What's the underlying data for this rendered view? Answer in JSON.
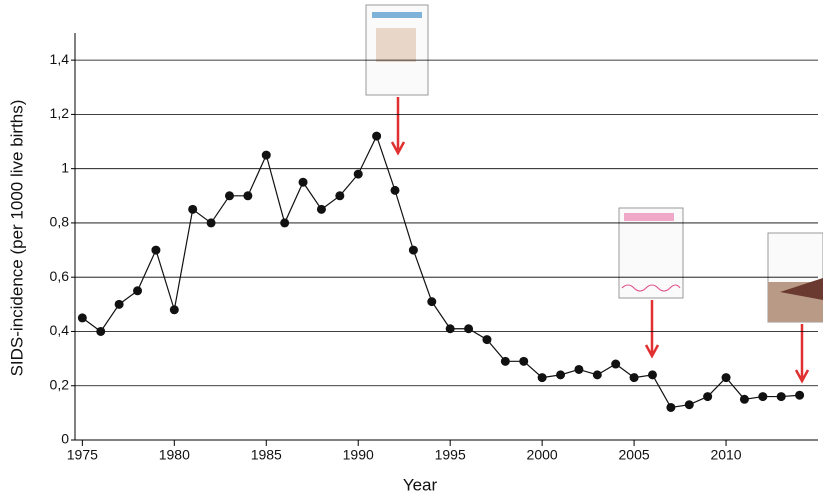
{
  "chart_data": {
    "type": "line",
    "x_label": "Year",
    "y_label": "SIDS-incidence (per 1000 live births)",
    "x": [
      1975,
      1976,
      1977,
      1978,
      1979,
      1980,
      1981,
      1982,
      1983,
      1984,
      1985,
      1986,
      1987,
      1988,
      1989,
      1990,
      1991,
      1992,
      1993,
      1994,
      1995,
      1996,
      1997,
      1998,
      1999,
      2000,
      2001,
      2002,
      2003,
      2004,
      2005,
      2006,
      2007,
      2008,
      2009,
      2010,
      2011,
      2012,
      2013,
      2014
    ],
    "values": [
      0.45,
      0.4,
      0.5,
      0.55,
      0.7,
      0.48,
      0.85,
      0.8,
      0.9,
      0.9,
      1.05,
      0.8,
      0.95,
      0.85,
      0.9,
      0.98,
      1.12,
      0.92,
      0.7,
      0.51,
      0.41,
      0.41,
      0.37,
      0.29,
      0.29,
      0.23,
      0.24,
      0.26,
      0.24,
      0.28,
      0.23,
      0.24,
      0.12,
      0.13,
      0.16,
      0.23,
      0.15,
      0.16,
      0.16,
      0.165
    ],
    "color": "#111111",
    "xlim": [
      1974.6,
      2015
    ],
    "xticks": [
      1975,
      1980,
      1985,
      1990,
      1995,
      2000,
      2005,
      2010
    ],
    "ylim": [
      0,
      1.5
    ],
    "yticks": [
      0,
      {
        "value": 0.2,
        "label": "0,2"
      },
      {
        "value": 0.4,
        "label": "0,4"
      },
      {
        "value": 0.6,
        "label": "0,6"
      },
      {
        "value": 0.8,
        "label": "0,8"
      },
      1,
      {
        "value": 1.2,
        "label": "1,2"
      },
      {
        "value": 1.4,
        "label": "1,4"
      }
    ],
    "grid": true
  }
}
